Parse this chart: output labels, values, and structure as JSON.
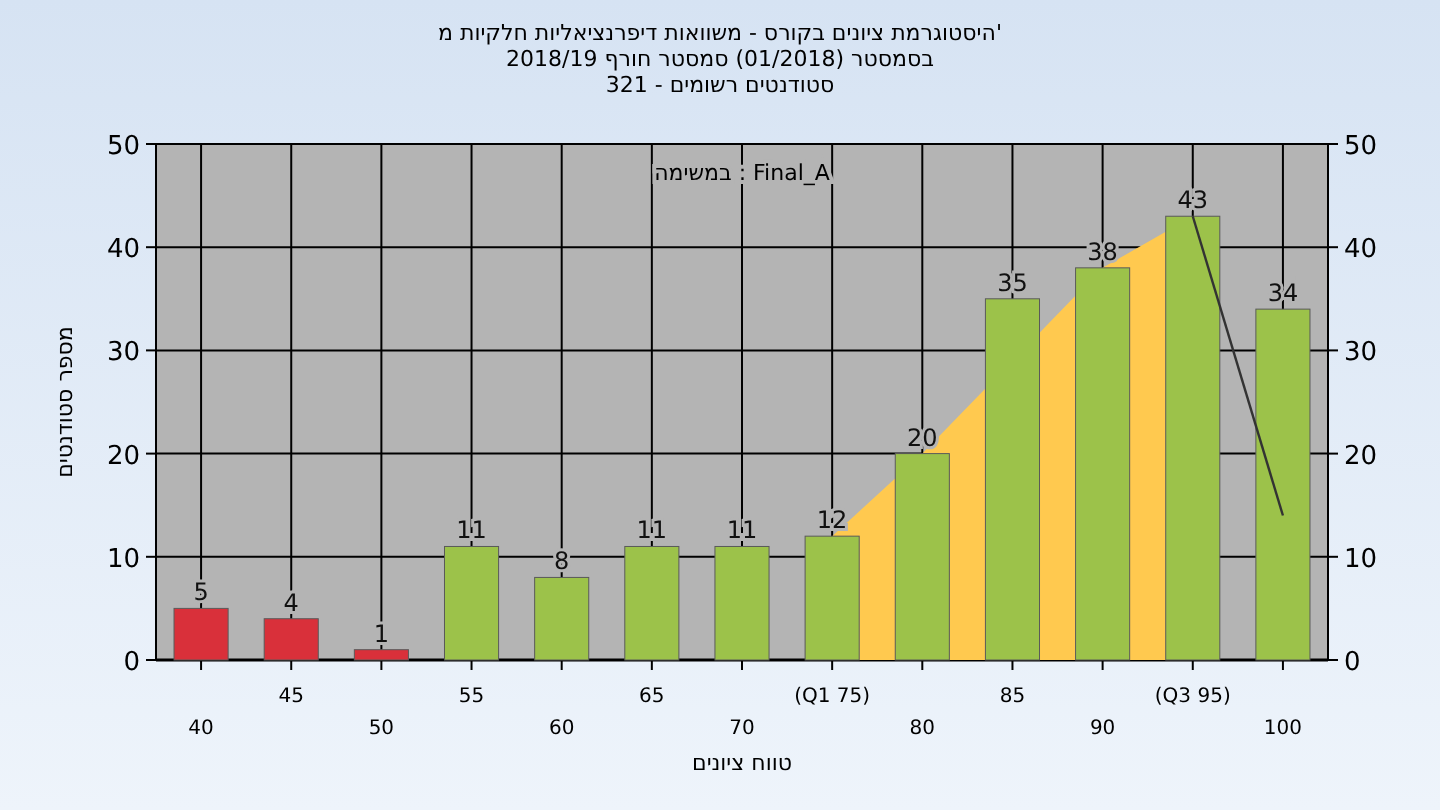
{
  "chart_data": {
    "type": "bar",
    "title": "היסטוגרמת ציונים בקורס - משוואות דיפרנציאליות חלקיות מ'",
    "subtitle": "בסמסטר  (01/2018)  סמסטר חורף 2018/19\nסטודנטים רשומים - 321",
    "xlabel": "טווח ציונים",
    "ylabel": "מספר סטודנטים",
    "annotations": [
      "במשימה : Final_A"
    ],
    "categories": [
      "40",
      "45",
      "50",
      "55",
      "60",
      "65",
      "70",
      "(Q1 75)",
      "80",
      "85",
      "90",
      "(Q3 95)",
      "100"
    ],
    "series": [
      {
        "type": "area",
        "color": "#ffc94f",
        "values": [
          null,
          null,
          null,
          null,
          null,
          null,
          null,
          12,
          20,
          null,
          38,
          43,
          null
        ]
      },
      {
        "colors": [
          "#d9303a",
          "#d9303a",
          "#d9303a",
          "#9cc24a",
          "#9cc24a",
          "#9cc24a",
          "#9cc24a",
          "#9cc24a",
          "#9cc24a",
          "#9cc24a",
          "#9cc24a",
          "#9cc24a",
          "#9cc24a"
        ],
        "values": [
          5,
          4,
          1,
          11,
          8,
          11,
          11,
          12,
          20,
          35,
          38,
          43,
          34
        ],
        "value_labels": [
          "5",
          "4",
          "1",
          "11",
          "8",
          "11",
          "11",
          "12",
          "20",
          "35",
          "38",
          "43",
          "34"
        ]
      },
      {
        "type": "line",
        "color": "#333333",
        "values": [
          null,
          null,
          null,
          null,
          null,
          null,
          null,
          null,
          null,
          null,
          null,
          43,
          14
        ]
      }
    ],
    "ylim": [
      0,
      50
    ],
    "yticks": [
      0,
      10,
      20,
      30,
      40,
      50
    ],
    "y2lim": [
      0,
      50
    ],
    "y2ticks": [
      0,
      10,
      20,
      30,
      40,
      50
    ],
    "grid": true
  }
}
